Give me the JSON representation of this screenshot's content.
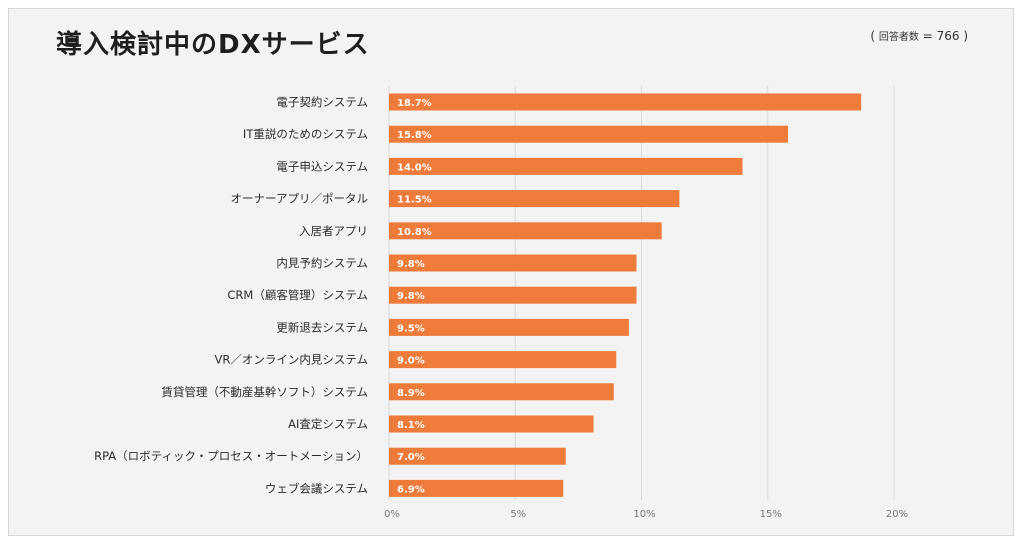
{
  "chart_data": {
    "type": "bar",
    "orientation": "horizontal",
    "title": "導入検討中のDXサービス",
    "respondents": {
      "open": "(",
      "label": "回答者数",
      "equals": "=",
      "value": "766",
      "close": ")"
    },
    "categories": [
      "電子契約システム",
      "IT重説のためのシステム",
      "電子申込システム",
      "オーナーアプリ／ポータル",
      "入居者アプリ",
      "内見予約システム",
      "CRM（顧客管理）システム",
      "更新退去システム",
      "VR／オンライン内見システム",
      "賃貸管理（不動産基幹ソフト）システム",
      "AI査定システム",
      "RPA（ロボティック・プロセス・オートメーション）",
      "ウェブ会議システム"
    ],
    "values": [
      18.7,
      15.8,
      14.0,
      11.5,
      10.8,
      9.8,
      9.8,
      9.5,
      9.0,
      8.9,
      8.1,
      7.0,
      6.9
    ],
    "value_labels": [
      "18.7%",
      "15.8%",
      "14.0%",
      "11.5%",
      "10.8%",
      "9.8%",
      "9.8%",
      "9.5%",
      "9.0%",
      "8.9%",
      "8.1%",
      "7.0%",
      "6.9%"
    ],
    "xlim": [
      0,
      20
    ],
    "x_ticks": [
      0,
      5,
      10,
      15,
      20
    ],
    "x_tick_labels": [
      "0%",
      "5%",
      "10%",
      "15%",
      "20%"
    ],
    "grid": true,
    "colors": {
      "bar": "#ef7b3a",
      "grid": "#d9d9d9",
      "bar_label": "#ffffff",
      "category_text": "#2b2b2b",
      "tick_text": "#777777"
    }
  }
}
